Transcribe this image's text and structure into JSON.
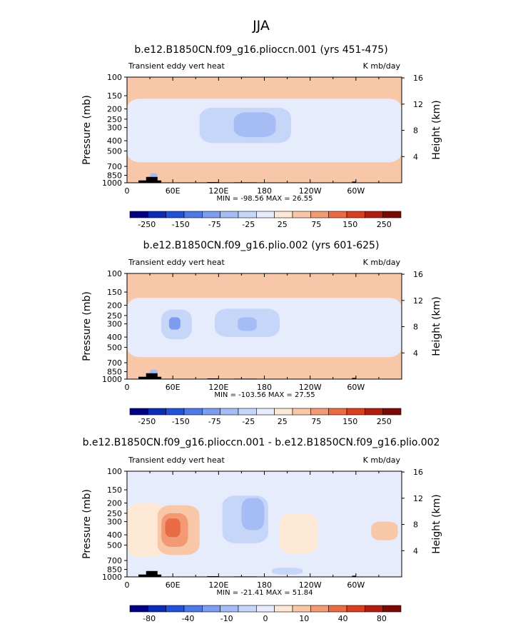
{
  "figure_title": "JJA",
  "chart_data": [
    {
      "type": "heatmap",
      "title": "b.e12.B1850CN.f09_g16.plioccn.001 (yrs 451-475)",
      "left_label": "Transient eddy vert heat",
      "units": "K mb/day",
      "ylabel": "Pressure (mb)",
      "y2label": "Height (km)",
      "y_ticks": [
        "100",
        "150",
        "200",
        "250",
        "300",
        "400",
        "500",
        "700",
        "850",
        "1000"
      ],
      "y_tick_values": [
        100,
        150,
        200,
        250,
        300,
        400,
        500,
        700,
        850,
        1000
      ],
      "y2_ticks": [
        "16",
        "12",
        "8",
        "4"
      ],
      "y2_tick_values": [
        16,
        12,
        8,
        4
      ],
      "x_ticks": [
        "0",
        "60E",
        "120E",
        "180",
        "120W",
        "60W"
      ],
      "x_tick_values": [
        0,
        60,
        120,
        180,
        240,
        300
      ],
      "xlim": [
        0,
        360
      ],
      "ylim": [
        1000,
        100
      ],
      "stats": "MIN = -98.56   MAX =  26.55",
      "min": -98.56,
      "max": 26.55,
      "colorbar_labels": [
        "-250",
        "-150",
        "-75",
        "-25",
        "25",
        "75",
        "150",
        "250"
      ],
      "colorbar_levels": [
        -250,
        -200,
        -150,
        -100,
        -75,
        -50,
        -25,
        -10,
        10,
        25,
        50,
        75,
        100,
        150,
        200,
        250
      ],
      "fields": [
        {
          "lon_start": 0,
          "lon_end": 360,
          "p_top": 100,
          "p_bottom": 1000,
          "value": 15
        },
        {
          "lon_start": 0,
          "lon_end": 360,
          "p_top": 160,
          "p_bottom": 640,
          "value": -15
        },
        {
          "lon_start": 95,
          "lon_end": 215,
          "p_top": 195,
          "p_bottom": 420,
          "value": -35
        },
        {
          "lon_start": 140,
          "lon_end": 195,
          "p_top": 215,
          "p_bottom": 370,
          "value": -55
        },
        {
          "lon_start": 30,
          "lon_end": 40,
          "p_top": 810,
          "p_bottom": 960,
          "value": -60
        }
      ]
    },
    {
      "type": "heatmap",
      "title": "b.e12.B1850CN.f09_g16.plio.002 (yrs 601-625)",
      "left_label": "Transient eddy vert heat",
      "units": "K mb/day",
      "ylabel": "Pressure (mb)",
      "y2label": "Height (km)",
      "y_ticks": [
        "100",
        "150",
        "200",
        "250",
        "300",
        "400",
        "500",
        "700",
        "850",
        "1000"
      ],
      "y_tick_values": [
        100,
        150,
        200,
        250,
        300,
        400,
        500,
        700,
        850,
        1000
      ],
      "y2_ticks": [
        "16",
        "12",
        "8",
        "4"
      ],
      "y2_tick_values": [
        16,
        12,
        8,
        4
      ],
      "x_ticks": [
        "0",
        "60E",
        "120E",
        "180",
        "120W",
        "60W"
      ],
      "x_tick_values": [
        0,
        60,
        120,
        180,
        240,
        300
      ],
      "xlim": [
        0,
        360
      ],
      "ylim": [
        1000,
        100
      ],
      "stats": "MIN = -103.56   MAX =  27.55",
      "min": -103.56,
      "max": 27.55,
      "colorbar_labels": [
        "-250",
        "-150",
        "-75",
        "-25",
        "25",
        "75",
        "150",
        "250"
      ],
      "colorbar_levels": [
        -250,
        -200,
        -150,
        -100,
        -75,
        -50,
        -25,
        -10,
        10,
        25,
        50,
        75,
        100,
        150,
        200,
        250
      ],
      "fields": [
        {
          "lon_start": 0,
          "lon_end": 360,
          "p_top": 100,
          "p_bottom": 1000,
          "value": 15
        },
        {
          "lon_start": 0,
          "lon_end": 360,
          "p_top": 170,
          "p_bottom": 620,
          "value": -15
        },
        {
          "lon_start": 45,
          "lon_end": 85,
          "p_top": 220,
          "p_bottom": 420,
          "value": -35
        },
        {
          "lon_start": 115,
          "lon_end": 200,
          "p_top": 215,
          "p_bottom": 400,
          "value": -35
        },
        {
          "lon_start": 55,
          "lon_end": 70,
          "p_top": 260,
          "p_bottom": 340,
          "value": -80
        },
        {
          "lon_start": 145,
          "lon_end": 170,
          "p_top": 260,
          "p_bottom": 350,
          "value": -55
        },
        {
          "lon_start": 30,
          "lon_end": 40,
          "p_top": 810,
          "p_bottom": 960,
          "value": -60
        }
      ]
    },
    {
      "type": "heatmap",
      "title": "b.e12.B1850CN.f09_g16.plioccn.001 - b.e12.B1850CN.f09_g16.plio.002",
      "left_label": "Transient eddy vert heat",
      "units": "K mb/day",
      "ylabel": "Pressure (mb)",
      "y2label": "Height (km)",
      "y_ticks": [
        "100",
        "150",
        "200",
        "250",
        "300",
        "400",
        "500",
        "700",
        "850",
        "1000"
      ],
      "y_tick_values": [
        100,
        150,
        200,
        250,
        300,
        400,
        500,
        700,
        850,
        1000
      ],
      "y2_ticks": [
        "16",
        "12",
        "8",
        "4"
      ],
      "y2_tick_values": [
        16,
        12,
        8,
        4
      ],
      "x_ticks": [
        "0",
        "60E",
        "120E",
        "180",
        "120W",
        "60W"
      ],
      "x_tick_values": [
        0,
        60,
        120,
        180,
        240,
        300
      ],
      "xlim": [
        0,
        360
      ],
      "ylim": [
        1000,
        100
      ],
      "stats": "MIN = -21.41   MAX =  51.84",
      "min": -21.41,
      "max": 51.84,
      "colorbar_labels": [
        "-80",
        "-40",
        "-10",
        "0",
        "10",
        "40",
        "80"
      ],
      "colorbar_levels": [
        -100,
        -80,
        -60,
        -40,
        -20,
        -10,
        -5,
        0,
        5,
        10,
        20,
        40,
        60,
        80,
        100
      ],
      "fields": [
        {
          "lon_start": 0,
          "lon_end": 360,
          "p_top": 100,
          "p_bottom": 1000,
          "value": -3
        },
        {
          "lon_start": 0,
          "lon_end": 50,
          "p_top": 200,
          "p_bottom": 650,
          "value": 3
        },
        {
          "lon_start": 40,
          "lon_end": 95,
          "p_top": 210,
          "p_bottom": 620,
          "value": 8
        },
        {
          "lon_start": 45,
          "lon_end": 80,
          "p_top": 250,
          "p_bottom": 520,
          "value": 15
        },
        {
          "lon_start": 50,
          "lon_end": 70,
          "p_top": 280,
          "p_bottom": 420,
          "value": 30
        },
        {
          "lon_start": 125,
          "lon_end": 185,
          "p_top": 170,
          "p_bottom": 480,
          "value": -8
        },
        {
          "lon_start": 150,
          "lon_end": 180,
          "p_top": 180,
          "p_bottom": 360,
          "value": -15
        },
        {
          "lon_start": 200,
          "lon_end": 250,
          "p_top": 250,
          "p_bottom": 600,
          "value": 3
        },
        {
          "lon_start": 320,
          "lon_end": 355,
          "p_top": 300,
          "p_bottom": 450,
          "value": 6
        },
        {
          "lon_start": 190,
          "lon_end": 230,
          "p_top": 820,
          "p_bottom": 950,
          "value": -8
        }
      ]
    }
  ],
  "colors": {
    "scale": [
      "#000080",
      "#0d2bb3",
      "#2352d6",
      "#4f7ae6",
      "#7b9cef",
      "#a5bdf4",
      "#c6d6f8",
      "#e6ecfb",
      "#fde8d6",
      "#f7c7a8",
      "#f19a74",
      "#e96c47",
      "#d6401f",
      "#b01e10",
      "#7a0a05"
    ],
    "terrain": "#000000"
  }
}
